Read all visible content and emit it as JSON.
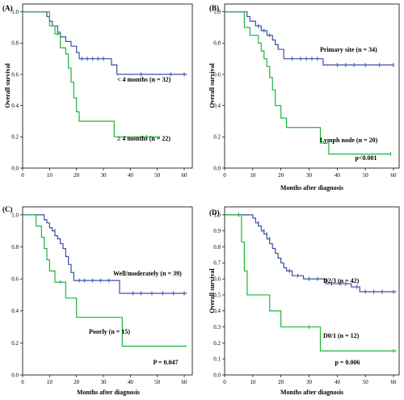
{
  "colors": {
    "blue": "#3a4ea4",
    "green": "#1fb43a",
    "frame": "#000000"
  },
  "chart_data": [
    {
      "type": "line",
      "panel_label": "(A)",
      "ylabel": "Overall survival",
      "xlabel": "",
      "xlim": [
        0,
        63
      ],
      "ylim": [
        0,
        1.05
      ],
      "xticks": [
        "0",
        "10",
        "20",
        "30",
        "40",
        "50",
        "60"
      ],
      "yticks": [
        "0.0",
        "0.2",
        "0.4",
        "0.6",
        "0.8",
        "1.0"
      ],
      "p_value": "",
      "series": [
        {
          "name": "< 4 months (n = 32)",
          "color": "blue",
          "steps": [
            [
              0,
              1.0
            ],
            [
              9,
              0.97
            ],
            [
              10,
              0.94
            ],
            [
              11,
              0.91
            ],
            [
              13,
              0.87
            ],
            [
              14,
              0.84
            ],
            [
              16,
              0.81
            ],
            [
              18,
              0.78
            ],
            [
              20,
              0.74
            ],
            [
              21,
              0.7
            ],
            [
              33,
              0.66
            ],
            [
              35,
              0.6
            ],
            [
              61,
              0.6
            ]
          ],
          "censors": [
            [
              22,
              0.7
            ],
            [
              24,
              0.7
            ],
            [
              26,
              0.7
            ],
            [
              28,
              0.7
            ],
            [
              30,
              0.7
            ],
            [
              44,
              0.6
            ],
            [
              55,
              0.6
            ],
            [
              60,
              0.6
            ]
          ]
        },
        {
          "name": "≥ 4 months (n = 22)",
          "color": "green",
          "steps": [
            [
              0,
              1.0
            ],
            [
              10,
              0.91
            ],
            [
              12,
              0.86
            ],
            [
              14,
              0.77
            ],
            [
              16,
              0.73
            ],
            [
              17,
              0.64
            ],
            [
              18,
              0.55
            ],
            [
              19,
              0.45
            ],
            [
              20,
              0.36
            ],
            [
              21,
              0.3
            ],
            [
              34,
              0.2
            ],
            [
              51,
              0.2
            ]
          ],
          "censors": [
            [
              13,
              0.86
            ],
            [
              46,
              0.2
            ]
          ]
        }
      ]
    },
    {
      "type": "line",
      "panel_label": "(B)",
      "ylabel": "Overall survival",
      "xlabel": "Months after diagnosis",
      "xlim": [
        0,
        62
      ],
      "ylim": [
        0,
        1.05
      ],
      "xticks": [
        "0",
        "10",
        "20",
        "30",
        "40",
        "50",
        "60"
      ],
      "yticks": [
        "0.0",
        "0.2",
        "0.4",
        "0.6",
        "0.8",
        "1.0"
      ],
      "p_value": "p<0.001",
      "series": [
        {
          "name": "Primary site (n = 34)",
          "color": "blue",
          "steps": [
            [
              0,
              1.0
            ],
            [
              8,
              0.97
            ],
            [
              9,
              0.94
            ],
            [
              11,
              0.91
            ],
            [
              13,
              0.88
            ],
            [
              15,
              0.85
            ],
            [
              17,
              0.82
            ],
            [
              18,
              0.79
            ],
            [
              19,
              0.76
            ],
            [
              21,
              0.7
            ],
            [
              35,
              0.66
            ],
            [
              60,
              0.66
            ]
          ],
          "censors": [
            [
              12,
              0.91
            ],
            [
              14,
              0.88
            ],
            [
              16,
              0.85
            ],
            [
              24,
              0.7
            ],
            [
              27,
              0.7
            ],
            [
              29,
              0.7
            ],
            [
              31,
              0.7
            ],
            [
              33,
              0.7
            ],
            [
              40,
              0.66
            ],
            [
              43,
              0.66
            ],
            [
              46,
              0.66
            ],
            [
              50,
              0.66
            ],
            [
              55,
              0.66
            ],
            [
              60,
              0.66
            ]
          ]
        },
        {
          "name": "Lymph node (n = 20)",
          "color": "green",
          "steps": [
            [
              0,
              1.0
            ],
            [
              7,
              0.9
            ],
            [
              9,
              0.85
            ],
            [
              12,
              0.8
            ],
            [
              13,
              0.75
            ],
            [
              14,
              0.7
            ],
            [
              15,
              0.65
            ],
            [
              16,
              0.58
            ],
            [
              17,
              0.5
            ],
            [
              18,
              0.4
            ],
            [
              20,
              0.32
            ],
            [
              22,
              0.26
            ],
            [
              34,
              0.16
            ],
            [
              37,
              0.09
            ],
            [
              59,
              0.09
            ]
          ],
          "censors": [
            [
              59,
              0.09
            ]
          ]
        }
      ]
    },
    {
      "type": "line",
      "panel_label": "(C)",
      "ylabel": "",
      "xlabel": "Months after diagnosis",
      "xlim": [
        0,
        63
      ],
      "ylim": [
        0,
        1.05
      ],
      "xticks": [
        "0",
        "10",
        "20",
        "30",
        "40",
        "50",
        "60"
      ],
      "yticks": [
        "0.0",
        "0.2",
        "0.4",
        "0.6",
        "0.8",
        "1.0"
      ],
      "p_value": "P = 0.047",
      "series": [
        {
          "name": "Well/moderately (n = 39)",
          "color": "blue",
          "steps": [
            [
              0,
              1.0
            ],
            [
              8,
              0.97
            ],
            [
              9,
              0.95
            ],
            [
              10,
              0.92
            ],
            [
              11,
              0.9
            ],
            [
              12,
              0.87
            ],
            [
              13,
              0.85
            ],
            [
              14,
              0.82
            ],
            [
              15,
              0.79
            ],
            [
              16,
              0.74
            ],
            [
              17,
              0.69
            ],
            [
              18,
              0.64
            ],
            [
              19,
              0.59
            ],
            [
              36,
              0.51
            ],
            [
              61,
              0.51
            ]
          ],
          "censors": [
            [
              12,
              0.9
            ],
            [
              21,
              0.59
            ],
            [
              23,
              0.59
            ],
            [
              26,
              0.59
            ],
            [
              29,
              0.59
            ],
            [
              32,
              0.59
            ],
            [
              41,
              0.51
            ],
            [
              44,
              0.51
            ],
            [
              48,
              0.51
            ],
            [
              52,
              0.51
            ],
            [
              56,
              0.51
            ],
            [
              60,
              0.51
            ]
          ]
        },
        {
          "name": "Poorly (n = 15)",
          "color": "green",
          "steps": [
            [
              0,
              1.0
            ],
            [
              5,
              0.93
            ],
            [
              7,
              0.86
            ],
            [
              8,
              0.79
            ],
            [
              9,
              0.72
            ],
            [
              10,
              0.65
            ],
            [
              12,
              0.58
            ],
            [
              16,
              0.48
            ],
            [
              20,
              0.36
            ],
            [
              37,
              0.18
            ],
            [
              61,
              0.18
            ]
          ],
          "censors": [
            [
              14,
              0.58
            ]
          ]
        }
      ]
    },
    {
      "type": "line",
      "panel_label": "(D)",
      "ylabel": "Overall survival",
      "xlabel": "Months after diagnosis",
      "xlim": [
        0,
        62
      ],
      "ylim": [
        0,
        1.05
      ],
      "xticks": [
        "0",
        "10",
        "20",
        "30",
        "40",
        "50",
        "60"
      ],
      "yticks": [
        "0.0",
        "0.1",
        "0.2",
        "0.3",
        "0.4",
        "0.5",
        "0.6",
        "0.7",
        "0.8",
        "0.9",
        "1.0"
      ],
      "p_value": "p = 0.006",
      "series": [
        {
          "name": "D2/3 (n = 42)",
          "color": "blue",
          "steps": [
            [
              0,
              1.0
            ],
            [
              10,
              0.98
            ],
            [
              11,
              0.95
            ],
            [
              12,
              0.93
            ],
            [
              13,
              0.9
            ],
            [
              14,
              0.88
            ],
            [
              15,
              0.85
            ],
            [
              16,
              0.82
            ],
            [
              17,
              0.79
            ],
            [
              18,
              0.76
            ],
            [
              19,
              0.73
            ],
            [
              20,
              0.7
            ],
            [
              21,
              0.67
            ],
            [
              22,
              0.65
            ],
            [
              24,
              0.62
            ],
            [
              28,
              0.6
            ],
            [
              36,
              0.57
            ],
            [
              45,
              0.55
            ],
            [
              48,
              0.52
            ],
            [
              61,
              0.52
            ]
          ],
          "censors": [
            [
              5,
              1.0
            ],
            [
              12,
              0.95
            ],
            [
              14,
              0.9
            ],
            [
              15,
              0.88
            ],
            [
              16,
              0.85
            ],
            [
              23,
              0.65
            ],
            [
              26,
              0.62
            ],
            [
              30,
              0.6
            ],
            [
              33,
              0.6
            ],
            [
              38,
              0.57
            ],
            [
              41,
              0.57
            ],
            [
              43,
              0.57
            ],
            [
              47,
              0.55
            ],
            [
              50,
              0.52
            ],
            [
              53,
              0.52
            ],
            [
              56,
              0.52
            ],
            [
              60,
              0.52
            ]
          ]
        },
        {
          "name": "D0/1 (n = 12)",
          "color": "green",
          "steps": [
            [
              0,
              1.0
            ],
            [
              6,
              0.83
            ],
            [
              7,
              0.65
            ],
            [
              8,
              0.5
            ],
            [
              16,
              0.4
            ],
            [
              20,
              0.3
            ],
            [
              34,
              0.15
            ],
            [
              61,
              0.15
            ]
          ],
          "censors": [
            [
              30,
              0.3
            ],
            [
              60,
              0.15
            ]
          ]
        }
      ]
    }
  ]
}
